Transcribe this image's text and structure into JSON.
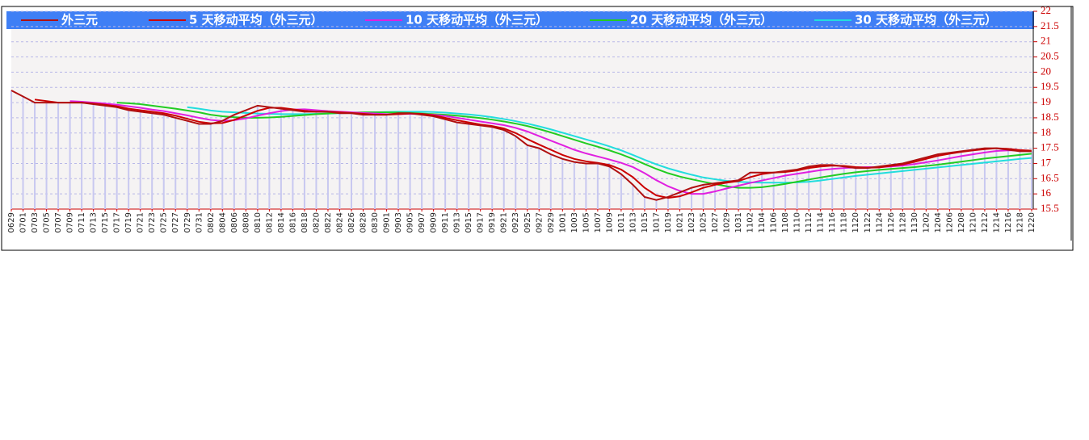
{
  "chart_data": {
    "type": "line",
    "categories": [
      "0629",
      "0701",
      "0703",
      "0705",
      "0707",
      "0709",
      "0711",
      "0713",
      "0715",
      "0717",
      "0719",
      "0721",
      "0723",
      "0725",
      "0727",
      "0729",
      "0731",
      "0802",
      "0804",
      "0806",
      "0808",
      "0810",
      "0812",
      "0814",
      "0816",
      "0818",
      "0820",
      "0822",
      "0824",
      "0826",
      "0828",
      "0830",
      "0901",
      "0903",
      "0905",
      "0907",
      "0909",
      "0911",
      "0913",
      "0915",
      "0917",
      "0919",
      "0921",
      "0923",
      "0925",
      "0927",
      "0929",
      "1001",
      "1003",
      "1005",
      "1007",
      "1009",
      "1011",
      "1013",
      "1015",
      "1017",
      "1019",
      "1021",
      "1023",
      "1025",
      "1027",
      "1029",
      "1031",
      "1102",
      "1104",
      "1106",
      "1108",
      "1110",
      "1112",
      "1114",
      "1116",
      "1118",
      "1120",
      "1122",
      "1124",
      "1126",
      "1128",
      "1130",
      "1202",
      "1204",
      "1206",
      "1208",
      "1210",
      "1212",
      "1214",
      "1216",
      "1218",
      "1220"
    ],
    "series": [
      {
        "name": "外三元",
        "color": "#b01010",
        "values": [
          19.4,
          19.2,
          19.0,
          19.0,
          19.0,
          19.0,
          19.0,
          18.95,
          18.9,
          18.85,
          18.75,
          18.7,
          18.65,
          18.6,
          18.5,
          18.4,
          18.3,
          18.3,
          18.4,
          18.6,
          18.75,
          18.9,
          18.85,
          18.8,
          18.75,
          18.7,
          18.7,
          18.7,
          18.65,
          18.65,
          18.6,
          18.6,
          18.6,
          18.65,
          18.65,
          18.6,
          18.55,
          18.45,
          18.35,
          18.3,
          18.25,
          18.2,
          18.1,
          17.9,
          17.6,
          17.5,
          17.3,
          17.15,
          17.05,
          17.0,
          17.0,
          16.9,
          16.65,
          16.3,
          15.9,
          15.8,
          15.9,
          16.05,
          16.2,
          16.3,
          16.35,
          16.4,
          16.45,
          16.7,
          16.7,
          16.7,
          16.75,
          16.8,
          16.9,
          16.95,
          16.95,
          16.9,
          16.85,
          16.85,
          16.9,
          16.95,
          17.0,
          17.1,
          17.2,
          17.3,
          17.35,
          17.4,
          17.45,
          17.5,
          17.5,
          17.45,
          17.4,
          17.4
        ]
      },
      {
        "name": "5 天移动平均（外三元）",
        "color": "#cc0000",
        "values": [
          null,
          null,
          19.1,
          19.05,
          19.0,
          19.0,
          19.0,
          18.97,
          18.93,
          18.88,
          18.8,
          18.75,
          18.7,
          18.65,
          18.57,
          18.47,
          18.37,
          18.32,
          18.33,
          18.43,
          18.58,
          18.73,
          18.83,
          18.83,
          18.78,
          18.73,
          18.7,
          18.7,
          18.68,
          18.66,
          18.63,
          18.6,
          18.6,
          18.62,
          18.64,
          18.63,
          18.58,
          18.5,
          18.42,
          18.35,
          18.28,
          18.23,
          18.15,
          18.0,
          17.8,
          17.62,
          17.45,
          17.28,
          17.15,
          17.07,
          17.02,
          16.95,
          16.8,
          16.55,
          16.2,
          15.95,
          15.87,
          15.92,
          16.05,
          16.2,
          16.3,
          16.37,
          16.42,
          16.55,
          16.65,
          16.7,
          16.72,
          16.77,
          16.85,
          16.9,
          16.93,
          16.92,
          16.88,
          16.86,
          16.87,
          16.92,
          16.97,
          17.05,
          17.15,
          17.25,
          17.32,
          17.38,
          17.43,
          17.47,
          17.5,
          17.48,
          17.44,
          17.42
        ]
      },
      {
        "name": "10 天移动平均（外三元）",
        "color": "#e020e0",
        "values": [
          null,
          null,
          null,
          null,
          null,
          19.05,
          19.03,
          19.0,
          18.97,
          18.93,
          18.88,
          18.83,
          18.77,
          18.72,
          18.65,
          18.58,
          18.5,
          18.43,
          18.4,
          18.42,
          18.48,
          18.57,
          18.65,
          18.72,
          18.77,
          18.78,
          18.75,
          18.72,
          18.7,
          18.68,
          18.66,
          18.64,
          18.62,
          18.62,
          18.63,
          18.62,
          18.6,
          18.56,
          18.5,
          18.44,
          18.38,
          18.32,
          18.26,
          18.17,
          18.05,
          17.9,
          17.75,
          17.6,
          17.45,
          17.33,
          17.23,
          17.13,
          17.02,
          16.88,
          16.68,
          16.45,
          16.25,
          16.1,
          16.0,
          16.0,
          16.08,
          16.18,
          16.27,
          16.36,
          16.44,
          16.52,
          16.6,
          16.66,
          16.72,
          16.78,
          16.82,
          16.85,
          16.87,
          16.88,
          16.88,
          16.9,
          16.93,
          16.98,
          17.04,
          17.1,
          17.17,
          17.24,
          17.3,
          17.36,
          17.41,
          17.43,
          17.43,
          17.42
        ]
      },
      {
        "name": "20 天移动平均（外三元）",
        "color": "#22cc22",
        "values": [
          null,
          null,
          null,
          null,
          null,
          null,
          null,
          null,
          null,
          19.0,
          18.98,
          18.95,
          18.9,
          18.85,
          18.8,
          18.74,
          18.68,
          18.6,
          18.55,
          18.52,
          18.5,
          18.5,
          18.51,
          18.53,
          18.56,
          18.59,
          18.62,
          18.64,
          18.66,
          18.67,
          18.68,
          18.68,
          18.68,
          18.67,
          18.66,
          18.64,
          18.62,
          18.6,
          18.57,
          18.53,
          18.49,
          18.44,
          18.38,
          18.31,
          18.23,
          18.13,
          18.02,
          17.9,
          17.78,
          17.66,
          17.55,
          17.43,
          17.3,
          17.15,
          16.98,
          16.82,
          16.68,
          16.57,
          16.48,
          16.4,
          16.32,
          16.25,
          16.2,
          16.2,
          16.22,
          16.27,
          16.33,
          16.4,
          16.47,
          16.54,
          16.6,
          16.66,
          16.71,
          16.75,
          16.79,
          16.82,
          16.85,
          16.88,
          16.92,
          16.96,
          17.01,
          17.06,
          17.11,
          17.16,
          17.2,
          17.24,
          17.28,
          17.32
        ]
      },
      {
        "name": "30 天移动平均（外三元）",
        "color": "#22dddd",
        "values": [
          null,
          null,
          null,
          null,
          null,
          null,
          null,
          null,
          null,
          null,
          null,
          null,
          null,
          null,
          null,
          18.85,
          18.8,
          18.74,
          18.7,
          18.68,
          18.66,
          18.64,
          18.63,
          18.62,
          18.62,
          18.62,
          18.63,
          18.64,
          18.65,
          18.66,
          18.67,
          18.68,
          18.69,
          18.7,
          18.7,
          18.7,
          18.69,
          18.67,
          18.64,
          18.61,
          18.57,
          18.52,
          18.46,
          18.39,
          18.31,
          18.22,
          18.12,
          18.01,
          17.9,
          17.79,
          17.68,
          17.56,
          17.43,
          17.28,
          17.12,
          16.97,
          16.84,
          16.73,
          16.63,
          16.54,
          16.48,
          16.43,
          16.4,
          16.38,
          16.37,
          16.37,
          16.37,
          16.38,
          16.4,
          16.44,
          16.49,
          16.54,
          16.59,
          16.63,
          16.67,
          16.71,
          16.75,
          16.79,
          16.83,
          16.87,
          16.91,
          16.95,
          16.99,
          17.03,
          17.07,
          17.11,
          17.15,
          17.18
        ]
      }
    ],
    "ylim": [
      15.5,
      22
    ],
    "yticks": [
      15.5,
      16,
      16.5,
      17,
      17.5,
      18,
      18.5,
      19,
      19.5,
      20,
      20.5,
      21,
      21.5,
      22
    ],
    "grid": true
  }
}
